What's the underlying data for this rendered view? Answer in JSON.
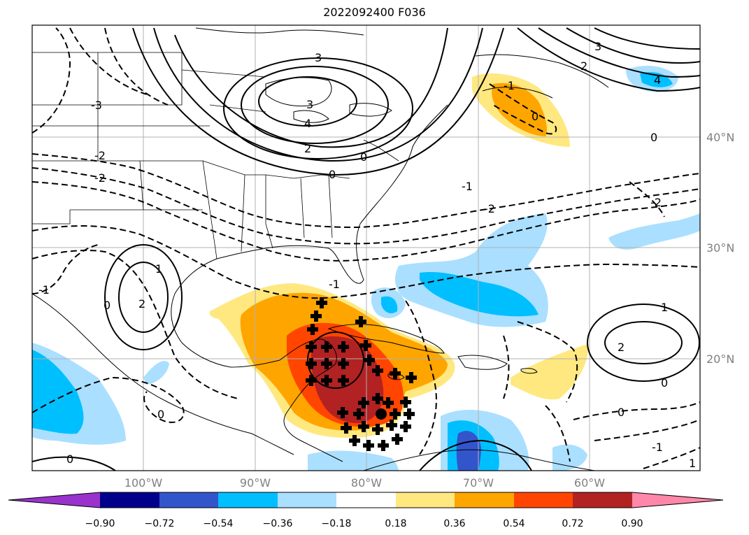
{
  "title": "2022092400 F036",
  "lat_labels": [
    "40°N",
    "30°N",
    "20°N"
  ],
  "lon_labels": [
    "100°W",
    "90°W",
    "80°W",
    "70°W",
    "60°W"
  ],
  "colorbar": {
    "colors": [
      "#9933cc",
      "#00008b",
      "#3355cc",
      "#00bfff",
      "#aadfff",
      "#ffffff",
      "#ffe880",
      "#ffa500",
      "#ff4500",
      "#b22222",
      "#ff88aa"
    ],
    "tick_labels": [
      "−0.90",
      "−0.72",
      "−0.54",
      "−0.36",
      "−0.18",
      "0.18",
      "0.36",
      "0.54",
      "0.72",
      "0.90"
    ]
  },
  "contour_labels": [
    "3",
    "3",
    "4",
    "2",
    "0",
    "0",
    "-1",
    "-2",
    "-3",
    "-2",
    "-2",
    "1",
    "2",
    "0",
    "-1",
    "0",
    "1",
    "2",
    "0",
    "0",
    "-1",
    "1",
    "-1",
    "4",
    "3",
    "2",
    "-1",
    "-2",
    "0",
    "0",
    "0"
  ]
}
